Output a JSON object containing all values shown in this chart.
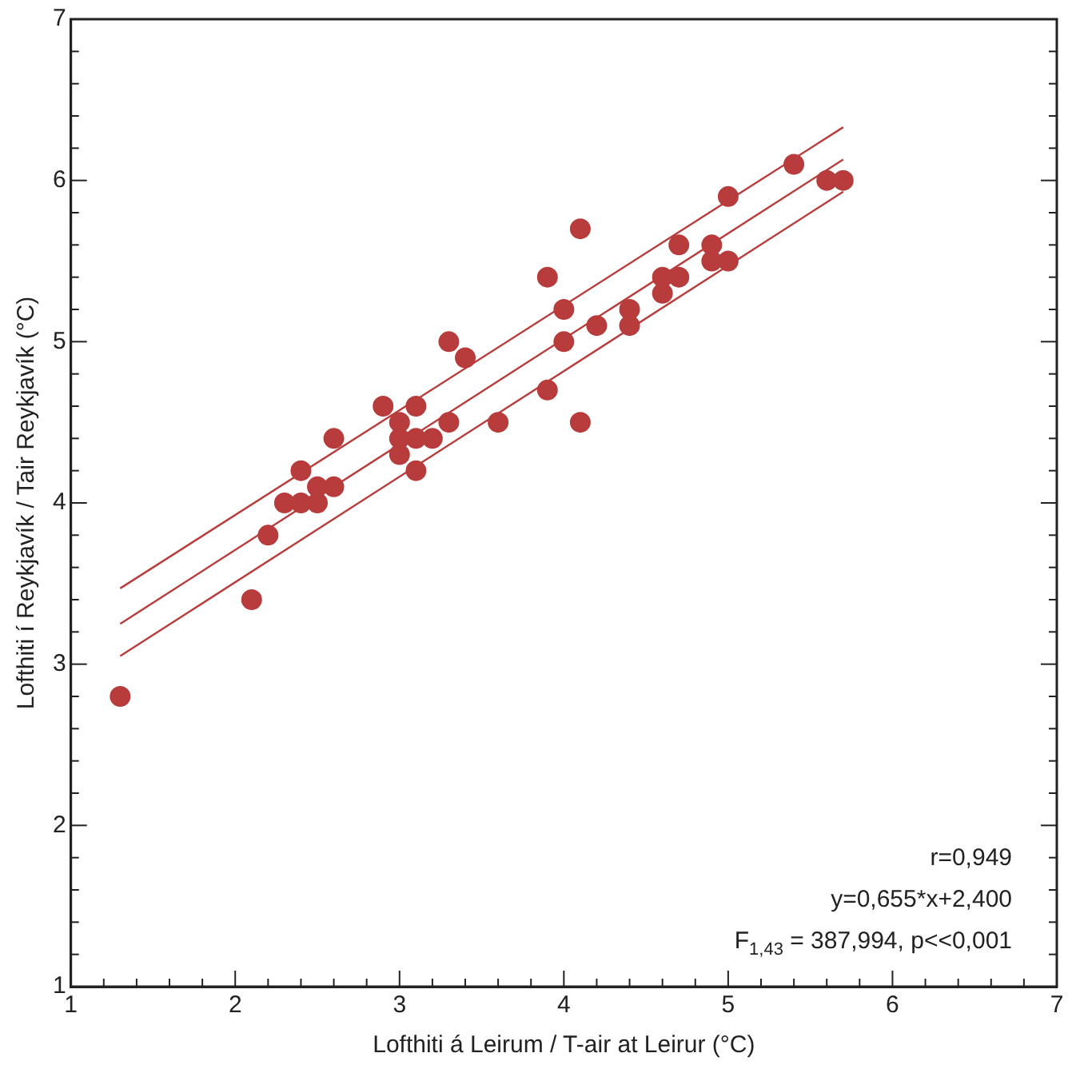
{
  "chart_data": {
    "type": "scatter",
    "xlabel": "Lofthiti á Leirum / T-air at Leirur (°C)",
    "ylabel": "Lofthiti í Reykjavík / Tair Reykjavík (°C)",
    "xlim": [
      1,
      7
    ],
    "ylim": [
      1,
      7
    ],
    "xticks": [
      1,
      {
        "value": 1.2,
        "label": null
      },
      {
        "value": 1.4,
        "label": null
      },
      {
        "value": 1.6,
        "label": null
      },
      {
        "value": 1.8,
        "label": null
      },
      2,
      {
        "value": 2.2,
        "label": null
      },
      {
        "value": 2.4,
        "label": null
      },
      {
        "value": 2.6,
        "label": null
      },
      {
        "value": 2.8,
        "label": null
      },
      3,
      {
        "value": 3.2,
        "label": null
      },
      {
        "value": 3.4,
        "label": null
      },
      {
        "value": 3.6,
        "label": null
      },
      {
        "value": 3.8,
        "label": null
      },
      4,
      {
        "value": 4.2,
        "label": null
      },
      {
        "value": 4.4,
        "label": null
      },
      {
        "value": 4.6,
        "label": null
      },
      {
        "value": 4.8,
        "label": null
      },
      5,
      {
        "value": 5.2,
        "label": null
      },
      {
        "value": 5.4,
        "label": null
      },
      {
        "value": 5.6,
        "label": null
      },
      {
        "value": 5.8,
        "label": null
      },
      6,
      {
        "value": 6.2,
        "label": null
      },
      {
        "value": 6.4,
        "label": null
      },
      {
        "value": 6.6,
        "label": null
      },
      {
        "value": 6.8,
        "label": null
      },
      7
    ],
    "yticks": [
      1,
      {
        "value": 1.2,
        "label": null
      },
      {
        "value": 1.4,
        "label": null
      },
      {
        "value": 1.6,
        "label": null
      },
      {
        "value": 1.8,
        "label": null
      },
      2,
      {
        "value": 2.2,
        "label": null
      },
      {
        "value": 2.4,
        "label": null
      },
      {
        "value": 2.6,
        "label": null
      },
      {
        "value": 2.8,
        "label": null
      },
      3,
      {
        "value": 3.2,
        "label": null
      },
      {
        "value": 3.4,
        "label": null
      },
      {
        "value": 3.6,
        "label": null
      },
      {
        "value": 3.8,
        "label": null
      },
      4,
      {
        "value": 4.2,
        "label": null
      },
      {
        "value": 4.4,
        "label": null
      },
      {
        "value": 4.6,
        "label": null
      },
      {
        "value": 4.8,
        "label": null
      },
      5,
      {
        "value": 5.2,
        "label": null
      },
      {
        "value": 5.4,
        "label": null
      },
      {
        "value": 5.6,
        "label": null
      },
      {
        "value": 5.8,
        "label": null
      },
      6,
      {
        "value": 6.2,
        "label": null
      },
      {
        "value": 6.4,
        "label": null
      },
      {
        "value": 6.6,
        "label": null
      },
      {
        "value": 6.8,
        "label": null
      },
      7
    ],
    "grid": false,
    "legend": false,
    "series": [
      {
        "marker": "circle",
        "color": "#b83c3c",
        "x": [
          1.3,
          2.1,
          2.2,
          2.3,
          2.4,
          2.4,
          2.5,
          2.5,
          2.6,
          2.6,
          2.9,
          3.0,
          3.0,
          3.0,
          3.1,
          3.1,
          3.1,
          3.2,
          3.3,
          3.3,
          3.4,
          3.6,
          3.9,
          3.9,
          4.0,
          4.0,
          4.1,
          4.1,
          4.2,
          4.4,
          4.4,
          4.6,
          4.6,
          4.7,
          4.7,
          4.9,
          4.9,
          5.0,
          5.0,
          5.4,
          5.6,
          5.7
        ],
        "values": [
          2.8,
          3.4,
          3.8,
          4.0,
          4.0,
          4.2,
          4.1,
          4.0,
          4.1,
          4.4,
          4.6,
          4.5,
          4.4,
          4.3,
          4.6,
          4.4,
          4.2,
          4.4,
          4.5,
          5.0,
          4.9,
          4.5,
          5.4,
          4.7,
          5.2,
          5.0,
          5.7,
          4.5,
          5.1,
          5.2,
          5.1,
          5.4,
          5.3,
          5.6,
          5.4,
          5.6,
          5.5,
          5.9,
          5.5,
          6.1,
          6.0,
          6.0
        ]
      },
      {
        "type": "line",
        "marker": "none",
        "color": "#b83c3c",
        "x": [
          1.3,
          5.7
        ],
        "values": [
          3.47,
          6.33
        ]
      },
      {
        "type": "line",
        "marker": "none",
        "color": "#b83c3c",
        "x": [
          1.3,
          5.7
        ],
        "values": [
          3.25,
          6.13
        ]
      },
      {
        "type": "line",
        "marker": "none",
        "color": "#b83c3c",
        "x": [
          1.3,
          5.7
        ],
        "values": [
          3.05,
          5.93
        ]
      }
    ],
    "annotations": [
      "r=0,949",
      "y=0,655*x+2,400",
      "F$_{1,43}$ = 387,994, p<<0,001"
    ]
  }
}
